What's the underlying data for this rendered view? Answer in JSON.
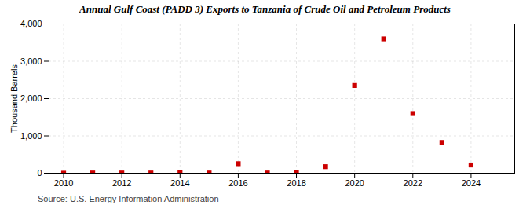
{
  "chart_data": {
    "type": "scatter",
    "title": "Annual Gulf Coast (PADD 3) Exports to Tanzania of Crude Oil and Petroleum Products",
    "ylabel": "Thousand Barrels",
    "source": "Source: U.S. Energy Information Administration",
    "x": [
      2010,
      2011,
      2012,
      2013,
      2014,
      2015,
      2016,
      2017,
      2018,
      2019,
      2020,
      2021,
      2022,
      2023,
      2024
    ],
    "values": [
      0,
      5,
      5,
      5,
      10,
      5,
      255,
      5,
      30,
      175,
      2350,
      3600,
      1600,
      825,
      220
    ],
    "color": "#cc0000",
    "marker": "square",
    "xlim": [
      2009.5,
      2025.5
    ],
    "xticks": [
      2010,
      2012,
      2014,
      2016,
      2018,
      2020,
      2022,
      2024
    ],
    "ylim": [
      0,
      4000
    ],
    "yticks": [
      0,
      {
        "value": 1000,
        "label": "1,000"
      },
      {
        "value": 2000,
        "label": "2,000"
      },
      {
        "value": 3000,
        "label": "3,000"
      },
      {
        "value": 4000,
        "label": "4,000"
      }
    ],
    "grid": true
  }
}
